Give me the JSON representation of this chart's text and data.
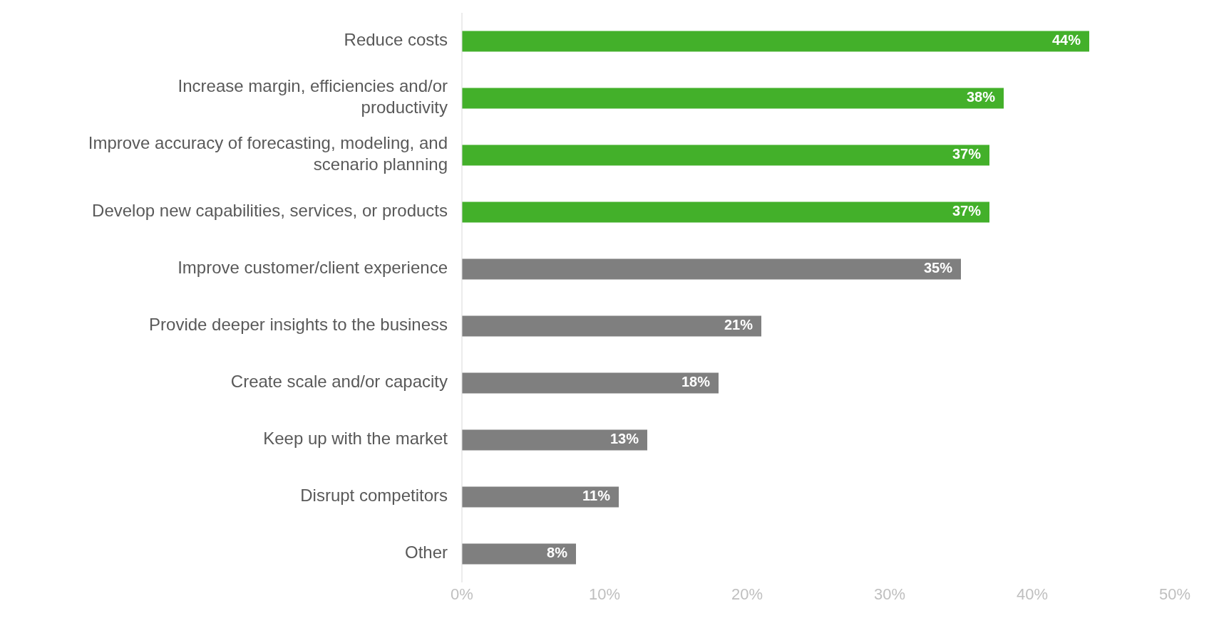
{
  "chart_data": {
    "type": "bar",
    "orientation": "horizontal",
    "categories": [
      "Reduce costs",
      "Increase margin, efficiencies and/or productivity",
      "Improve accuracy of forecasting, modeling, and scenario planning",
      "Develop new capabilities, services, or products",
      "Improve customer/client experience",
      "Provide deeper insights to the business",
      "Create scale and/or capacity",
      "Keep up with the market",
      "Disrupt competitors",
      "Other"
    ],
    "values": [
      44,
      38,
      37,
      37,
      35,
      21,
      18,
      13,
      11,
      8
    ],
    "value_labels": [
      "44%",
      "38%",
      "37%",
      "37%",
      "35%",
      "21%",
      "18%",
      "13%",
      "11%",
      "8%"
    ],
    "colors": [
      "#43b02a",
      "#43b02a",
      "#43b02a",
      "#43b02a",
      "#7f7f7f",
      "#7f7f7f",
      "#7f7f7f",
      "#7f7f7f",
      "#7f7f7f",
      "#7f7f7f"
    ],
    "xlim": [
      0,
      50
    ],
    "xticks": [
      {
        "value": 0,
        "label": "0%"
      },
      {
        "value": 10,
        "label": "10%"
      },
      {
        "value": 20,
        "label": "20%"
      },
      {
        "value": 30,
        "label": "30%"
      },
      {
        "value": 40,
        "label": "40%"
      },
      {
        "value": 50,
        "label": "50%"
      }
    ],
    "grid": false,
    "legend": false
  }
}
